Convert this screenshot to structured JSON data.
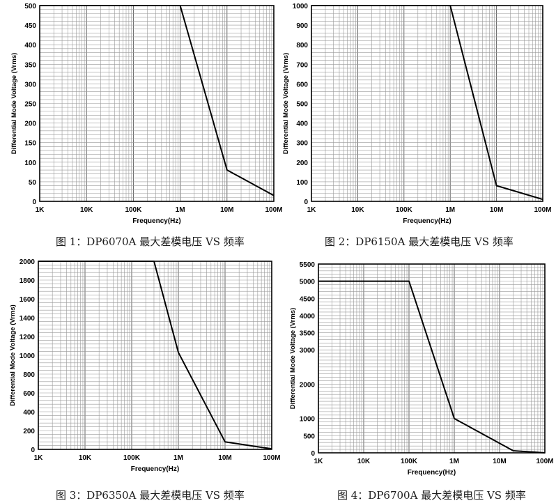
{
  "chart_data": [
    {
      "type": "line",
      "xlabel": "Frequency(Hz)",
      "ylabel": "Differential Mode Voltage (Vrms)",
      "x_scale": "log",
      "x_ticks": [
        "1K",
        "10K",
        "100K",
        "1M",
        "10M",
        "100M"
      ],
      "xlim": [
        1000,
        100000000
      ],
      "ylim": [
        0,
        500
      ],
      "y_ticks": [
        0,
        50,
        100,
        150,
        200,
        250,
        300,
        350,
        400,
        450,
        500
      ],
      "grid": true,
      "series": [
        {
          "x": [
            1000,
            1000000,
            10000000,
            100000000
          ],
          "y": [
            500,
            500,
            80,
            15
          ]
        }
      ]
    },
    {
      "type": "line",
      "xlabel": "Frequency(Hz)",
      "ylabel": "Differential Mode Voltage (Vrms)",
      "x_scale": "log",
      "x_ticks": [
        "1K",
        "10K",
        "100K",
        "1M",
        "10M",
        "100M"
      ],
      "xlim": [
        1000,
        100000000
      ],
      "ylim": [
        0,
        1000
      ],
      "y_ticks": [
        0,
        100,
        200,
        300,
        400,
        500,
        600,
        700,
        800,
        900,
        1000
      ],
      "grid": true,
      "series": [
        {
          "x": [
            1000,
            1000000,
            10000000,
            100000000
          ],
          "y": [
            1010,
            1010,
            80,
            10
          ]
        }
      ]
    },
    {
      "type": "line",
      "xlabel": "Frequency(Hz)",
      "ylabel": "Differential Mode Voltage (Vrms)",
      "x_scale": "log",
      "x_ticks": [
        "1K",
        "10K",
        "100K",
        "1M",
        "10M",
        "100M"
      ],
      "xlim": [
        1000,
        100000000
      ],
      "ylim": [
        0,
        2000
      ],
      "y_ticks": [
        0,
        200,
        400,
        600,
        800,
        1000,
        1200,
        1400,
        1600,
        1800,
        2000
      ],
      "grid": true,
      "series": [
        {
          "x": [
            1000,
            300000,
            1000000,
            10000000,
            100000000
          ],
          "y": [
            2000,
            2000,
            1030,
            80,
            5
          ]
        }
      ]
    },
    {
      "type": "line",
      "xlabel": "Frequency(Hz)",
      "ylabel": "Differential Mode Voltage (Vrms)",
      "x_scale": "log",
      "x_ticks": [
        "1K",
        "10K",
        "100K",
        "1M",
        "10M",
        "100M"
      ],
      "xlim": [
        1000,
        100000000
      ],
      "ylim": [
        0,
        5500
      ],
      "y_ticks": [
        0,
        500,
        1000,
        2000,
        3000,
        3500,
        4000,
        4500,
        5000,
        5500
      ],
      "grid": true,
      "series": [
        {
          "x": [
            1000,
            100000,
            1000000,
            20000000,
            100000000
          ],
          "y": [
            5000,
            5000,
            1000,
            60,
            0
          ]
        }
      ]
    }
  ],
  "captions": [
    "图 1：DP6070A 最大差模电压 VS 频率",
    "图 2：DP6150A 最大差模电压 VS 频率",
    "图 3：DP6350A 最大差模电压 VS 频率",
    "图 4：DP6700A 最大差模电压 VS 频率"
  ]
}
